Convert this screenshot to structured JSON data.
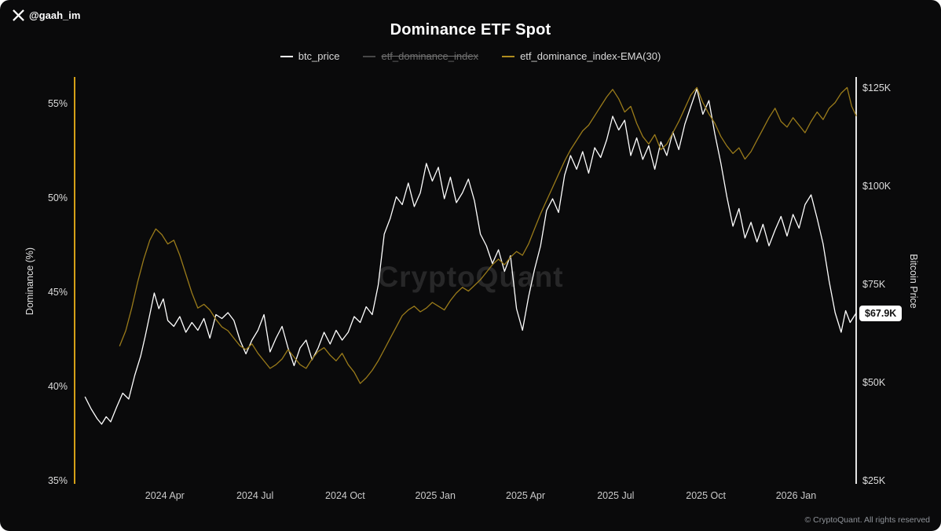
{
  "header": {
    "handle": "@gaah_im"
  },
  "legend": {
    "items": [
      {
        "label": "btc_price",
        "color": "#ffffff",
        "disabled": false
      },
      {
        "label": "etf_dominance_index",
        "color": "#7a7a7a",
        "disabled": true
      },
      {
        "label": "etf_dominance_index-EMA(30)",
        "color": "#b08c1e",
        "disabled": false
      }
    ]
  },
  "watermark": {
    "text": "CryptoQuant"
  },
  "footer": {
    "text": "© CryptoQuant. All rights reserved"
  },
  "colors": {
    "background": "#0a0a0b",
    "left_axis": "#d4a017",
    "right_axis": "#e3e3e3",
    "btc_line": "#ffffff",
    "ema_line": "#9a7b1a"
  },
  "chart_data": {
    "type": "line",
    "title": "Dominance ETF Spot",
    "grid": false,
    "legend_position": "top",
    "x_axis": {
      "t_unit": "months since 2024-01",
      "t_range": [
        0,
        26
      ],
      "ticks": [
        {
          "label": "2024 Apr",
          "t": 3
        },
        {
          "label": "2024 Jul",
          "t": 6
        },
        {
          "label": "2024 Oct",
          "t": 9
        },
        {
          "label": "2025 Jan",
          "t": 12
        },
        {
          "label": "2025 Apr",
          "t": 15
        },
        {
          "label": "2025 Jul",
          "t": 18
        },
        {
          "label": "2025 Oct",
          "t": 21
        },
        {
          "label": "2026 Jan",
          "t": 24
        }
      ]
    },
    "y_axis_left": {
      "label": "Dominance (%)",
      "range": [
        35,
        56.5
      ],
      "ticks": [
        {
          "label": "55%",
          "value": 55
        },
        {
          "label": "50%",
          "value": 50
        },
        {
          "label": "45%",
          "value": 45
        },
        {
          "label": "40%",
          "value": 40
        },
        {
          "label": "35%",
          "value": 35
        }
      ]
    },
    "y_axis_right": {
      "label": "Bitcoin Price",
      "range": [
        25,
        127
      ],
      "ticks": [
        {
          "label": "$125K",
          "value": 125
        },
        {
          "label": "$100K",
          "value": 100
        },
        {
          "label": "$75K",
          "value": 75
        },
        {
          "label": "$50K",
          "value": 50
        },
        {
          "label": "$25K",
          "value": 25
        }
      ]
    },
    "last_price_label": "$67.9K",
    "last_price_value": 67.9,
    "series": [
      {
        "name": "btc_price",
        "axis": "right",
        "color": "#ffffff",
        "visible": true,
        "width": 1.3,
        "points": [
          [
            0.35,
            46.5
          ],
          [
            0.55,
            43.5
          ],
          [
            0.75,
            41.0
          ],
          [
            0.9,
            39.6
          ],
          [
            1.05,
            41.5
          ],
          [
            1.2,
            40.2
          ],
          [
            1.4,
            44.0
          ],
          [
            1.6,
            47.5
          ],
          [
            1.8,
            46.0
          ],
          [
            2.0,
            52.0
          ],
          [
            2.2,
            57.0
          ],
          [
            2.35,
            62.0
          ],
          [
            2.5,
            67.5
          ],
          [
            2.65,
            73.0
          ],
          [
            2.8,
            69.0
          ],
          [
            2.95,
            71.5
          ],
          [
            3.1,
            66.0
          ],
          [
            3.3,
            64.5
          ],
          [
            3.5,
            67.0
          ],
          [
            3.7,
            63.0
          ],
          [
            3.9,
            65.5
          ],
          [
            4.1,
            63.5
          ],
          [
            4.3,
            66.5
          ],
          [
            4.5,
            61.5
          ],
          [
            4.7,
            67.5
          ],
          [
            4.9,
            66.5
          ],
          [
            5.1,
            68.0
          ],
          [
            5.3,
            66.0
          ],
          [
            5.5,
            61.0
          ],
          [
            5.7,
            57.5
          ],
          [
            5.9,
            61.0
          ],
          [
            6.1,
            63.5
          ],
          [
            6.3,
            67.5
          ],
          [
            6.5,
            58.0
          ],
          [
            6.7,
            61.5
          ],
          [
            6.9,
            64.5
          ],
          [
            7.1,
            59.0
          ],
          [
            7.3,
            54.5
          ],
          [
            7.5,
            59.0
          ],
          [
            7.7,
            61.0
          ],
          [
            7.9,
            56.0
          ],
          [
            8.1,
            59.0
          ],
          [
            8.3,
            63.0
          ],
          [
            8.5,
            60.0
          ],
          [
            8.7,
            63.5
          ],
          [
            8.9,
            61.0
          ],
          [
            9.1,
            63.0
          ],
          [
            9.3,
            67.0
          ],
          [
            9.5,
            65.5
          ],
          [
            9.7,
            69.5
          ],
          [
            9.9,
            67.5
          ],
          [
            10.1,
            75.0
          ],
          [
            10.3,
            88.0
          ],
          [
            10.5,
            92.0
          ],
          [
            10.7,
            97.5
          ],
          [
            10.9,
            95.5
          ],
          [
            11.1,
            101.0
          ],
          [
            11.3,
            95.0
          ],
          [
            11.5,
            98.5
          ],
          [
            11.7,
            106.0
          ],
          [
            11.9,
            101.5
          ],
          [
            12.1,
            105.0
          ],
          [
            12.3,
            97.0
          ],
          [
            12.5,
            102.5
          ],
          [
            12.7,
            96.0
          ],
          [
            12.9,
            98.5
          ],
          [
            13.1,
            102.0
          ],
          [
            13.3,
            96.5
          ],
          [
            13.5,
            88.0
          ],
          [
            13.7,
            85.0
          ],
          [
            13.9,
            80.5
          ],
          [
            14.1,
            84.0
          ],
          [
            14.3,
            78.5
          ],
          [
            14.5,
            82.5
          ],
          [
            14.7,
            69.0
          ],
          [
            14.9,
            63.5
          ],
          [
            15.1,
            72.0
          ],
          [
            15.3,
            79.0
          ],
          [
            15.5,
            85.0
          ],
          [
            15.7,
            94.0
          ],
          [
            15.9,
            97.0
          ],
          [
            16.1,
            93.5
          ],
          [
            16.3,
            103.0
          ],
          [
            16.5,
            108.0
          ],
          [
            16.7,
            104.5
          ],
          [
            16.9,
            109.0
          ],
          [
            17.1,
            103.5
          ],
          [
            17.3,
            110.0
          ],
          [
            17.5,
            107.5
          ],
          [
            17.7,
            112.0
          ],
          [
            17.9,
            118.0
          ],
          [
            18.1,
            114.5
          ],
          [
            18.3,
            117.0
          ],
          [
            18.5,
            108.0
          ],
          [
            18.7,
            112.5
          ],
          [
            18.9,
            107.0
          ],
          [
            19.1,
            110.5
          ],
          [
            19.3,
            104.5
          ],
          [
            19.5,
            111.5
          ],
          [
            19.7,
            108.0
          ],
          [
            19.9,
            114.0
          ],
          [
            20.1,
            109.5
          ],
          [
            20.3,
            116.0
          ],
          [
            20.5,
            120.5
          ],
          [
            20.7,
            125.0
          ],
          [
            20.9,
            118.5
          ],
          [
            21.1,
            122.0
          ],
          [
            21.3,
            113.5
          ],
          [
            21.5,
            106.0
          ],
          [
            21.7,
            97.5
          ],
          [
            21.9,
            90.0
          ],
          [
            22.1,
            94.5
          ],
          [
            22.3,
            87.0
          ],
          [
            22.5,
            91.0
          ],
          [
            22.7,
            86.0
          ],
          [
            22.9,
            90.5
          ],
          [
            23.1,
            85.0
          ],
          [
            23.3,
            89.0
          ],
          [
            23.5,
            92.5
          ],
          [
            23.7,
            87.5
          ],
          [
            23.9,
            93.0
          ],
          [
            24.1,
            89.5
          ],
          [
            24.3,
            95.5
          ],
          [
            24.5,
            98.0
          ],
          [
            24.7,
            92.0
          ],
          [
            24.9,
            85.5
          ],
          [
            25.1,
            76.0
          ],
          [
            25.3,
            68.0
          ],
          [
            25.5,
            63.0
          ],
          [
            25.65,
            68.5
          ],
          [
            25.8,
            65.5
          ],
          [
            26.0,
            67.9
          ]
        ]
      },
      {
        "name": "etf_dominance_index",
        "axis": "left",
        "color": "#7a7a7a",
        "visible": false,
        "width": 1.2,
        "points": []
      },
      {
        "name": "etf_dominance_index-EMA(30)",
        "axis": "left",
        "color": "#9a7b1a",
        "visible": true,
        "width": 1.3,
        "points": [
          [
            1.5,
            42.2
          ],
          [
            1.7,
            43.0
          ],
          [
            1.9,
            44.2
          ],
          [
            2.1,
            45.6
          ],
          [
            2.3,
            46.8
          ],
          [
            2.5,
            47.8
          ],
          [
            2.7,
            48.4
          ],
          [
            2.9,
            48.1
          ],
          [
            3.1,
            47.6
          ],
          [
            3.3,
            47.8
          ],
          [
            3.5,
            47.0
          ],
          [
            3.7,
            46.0
          ],
          [
            3.9,
            45.0
          ],
          [
            4.1,
            44.2
          ],
          [
            4.3,
            44.4
          ],
          [
            4.5,
            44.1
          ],
          [
            4.7,
            43.6
          ],
          [
            4.9,
            43.2
          ],
          [
            5.1,
            43.0
          ],
          [
            5.3,
            42.6
          ],
          [
            5.5,
            42.2
          ],
          [
            5.7,
            42.0
          ],
          [
            5.9,
            42.3
          ],
          [
            6.1,
            41.8
          ],
          [
            6.3,
            41.4
          ],
          [
            6.5,
            41.0
          ],
          [
            6.7,
            41.2
          ],
          [
            6.9,
            41.5
          ],
          [
            7.1,
            42.0
          ],
          [
            7.3,
            41.6
          ],
          [
            7.5,
            41.2
          ],
          [
            7.7,
            41.0
          ],
          [
            7.9,
            41.5
          ],
          [
            8.1,
            41.9
          ],
          [
            8.3,
            42.1
          ],
          [
            8.5,
            41.7
          ],
          [
            8.7,
            41.4
          ],
          [
            8.9,
            41.8
          ],
          [
            9.1,
            41.2
          ],
          [
            9.3,
            40.8
          ],
          [
            9.5,
            40.2
          ],
          [
            9.7,
            40.5
          ],
          [
            9.9,
            40.9
          ],
          [
            10.1,
            41.4
          ],
          [
            10.3,
            42.0
          ],
          [
            10.5,
            42.6
          ],
          [
            10.7,
            43.2
          ],
          [
            10.9,
            43.8
          ],
          [
            11.1,
            44.1
          ],
          [
            11.3,
            44.3
          ],
          [
            11.5,
            44.0
          ],
          [
            11.7,
            44.2
          ],
          [
            11.9,
            44.5
          ],
          [
            12.1,
            44.3
          ],
          [
            12.3,
            44.1
          ],
          [
            12.5,
            44.6
          ],
          [
            12.7,
            45.0
          ],
          [
            12.9,
            45.3
          ],
          [
            13.1,
            45.1
          ],
          [
            13.3,
            45.4
          ],
          [
            13.5,
            45.7
          ],
          [
            13.7,
            46.1
          ],
          [
            13.9,
            46.5
          ],
          [
            14.1,
            46.8
          ],
          [
            14.3,
            46.5
          ],
          [
            14.5,
            46.9
          ],
          [
            14.7,
            47.2
          ],
          [
            14.9,
            47.0
          ],
          [
            15.1,
            47.6
          ],
          [
            15.3,
            48.4
          ],
          [
            15.5,
            49.2
          ],
          [
            15.7,
            49.9
          ],
          [
            15.9,
            50.6
          ],
          [
            16.1,
            51.3
          ],
          [
            16.3,
            52.0
          ],
          [
            16.5,
            52.6
          ],
          [
            16.7,
            53.1
          ],
          [
            16.9,
            53.6
          ],
          [
            17.1,
            53.9
          ],
          [
            17.3,
            54.4
          ],
          [
            17.5,
            54.9
          ],
          [
            17.7,
            55.4
          ],
          [
            17.9,
            55.8
          ],
          [
            18.1,
            55.3
          ],
          [
            18.3,
            54.6
          ],
          [
            18.5,
            54.9
          ],
          [
            18.7,
            54.0
          ],
          [
            18.9,
            53.3
          ],
          [
            19.1,
            52.9
          ],
          [
            19.3,
            53.4
          ],
          [
            19.5,
            52.6
          ],
          [
            19.7,
            52.9
          ],
          [
            19.9,
            53.5
          ],
          [
            20.1,
            54.1
          ],
          [
            20.3,
            54.8
          ],
          [
            20.5,
            55.5
          ],
          [
            20.7,
            55.9
          ],
          [
            20.9,
            55.1
          ],
          [
            21.1,
            54.5
          ],
          [
            21.3,
            54.0
          ],
          [
            21.5,
            53.3
          ],
          [
            21.7,
            52.8
          ],
          [
            21.9,
            52.4
          ],
          [
            22.1,
            52.7
          ],
          [
            22.3,
            52.1
          ],
          [
            22.5,
            52.5
          ],
          [
            22.7,
            53.1
          ],
          [
            22.9,
            53.7
          ],
          [
            23.1,
            54.3
          ],
          [
            23.3,
            54.8
          ],
          [
            23.5,
            54.1
          ],
          [
            23.7,
            53.8
          ],
          [
            23.9,
            54.3
          ],
          [
            24.1,
            53.9
          ],
          [
            24.3,
            53.5
          ],
          [
            24.5,
            54.1
          ],
          [
            24.7,
            54.6
          ],
          [
            24.9,
            54.2
          ],
          [
            25.1,
            54.8
          ],
          [
            25.3,
            55.1
          ],
          [
            25.5,
            55.6
          ],
          [
            25.7,
            55.9
          ],
          [
            25.85,
            54.9
          ],
          [
            26.0,
            54.4
          ]
        ]
      }
    ]
  }
}
